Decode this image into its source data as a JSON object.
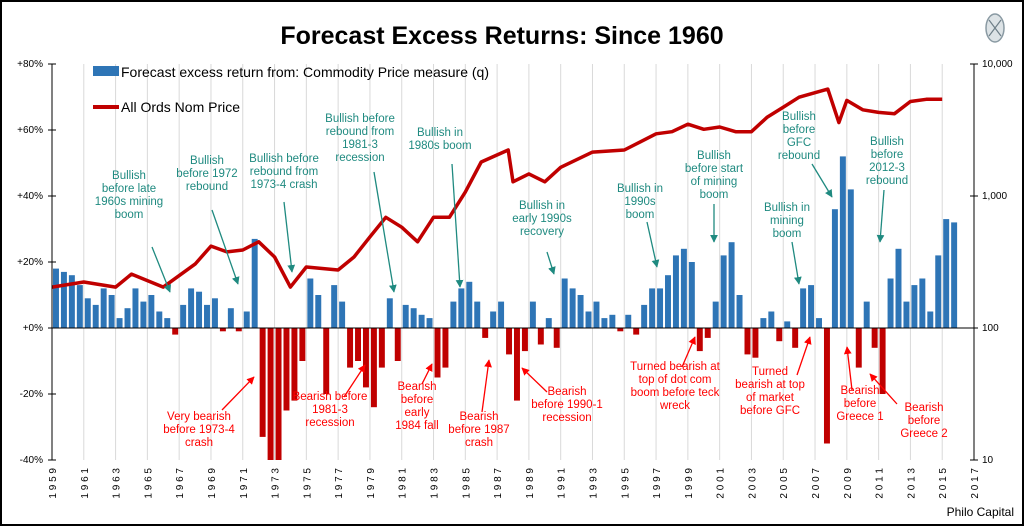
{
  "chart_data": {
    "type": "bar+line",
    "title": "Forecast Excess Returns:   Since 1960",
    "credit": "Philo Capital",
    "left_axis": {
      "range": [
        -40,
        80
      ],
      "ticks": [
        "+80%",
        "+60%",
        "+40%",
        "+20%",
        "+0%",
        "-20%",
        "-40%"
      ],
      "tick_values": [
        80,
        60,
        40,
        20,
        0,
        -20,
        -40
      ]
    },
    "right_axis": {
      "scale": "log",
      "range": [
        10,
        10000
      ],
      "ticks": [
        "10,000",
        "1,000",
        "100",
        "10"
      ],
      "tick_values": [
        10000,
        1000,
        100,
        10
      ]
    },
    "x_axis": {
      "range": [
        1959,
        2017
      ],
      "ticks": [
        "1959",
        "1961",
        "1963",
        "1965",
        "1967",
        "1969",
        "1971",
        "1973",
        "1975",
        "1977",
        "1979",
        "1981",
        "1983",
        "1985",
        "1987",
        "1989",
        "1991",
        "1993",
        "1995",
        "1997",
        "1999",
        "2001",
        "2003",
        "2005",
        "2007",
        "2009",
        "2011",
        "2013",
        "2015",
        "2017"
      ]
    },
    "grid": "vertical",
    "colors": {
      "bars_positive": "#2e75b6",
      "bars_negative": "#c00000",
      "line": "#c00000",
      "bullish_text": "#1f8a80",
      "bearish_text": "#ff0000"
    },
    "series": [
      {
        "name": "Forecast excess return from:  Commodity Price measure (q)",
        "type": "bar",
        "unit": "%",
        "x_start": 1959,
        "x_step": 0.5,
        "values": [
          18,
          17,
          16,
          13,
          9,
          7,
          12,
          10,
          3,
          6,
          12,
          8,
          10,
          5,
          3,
          -2,
          7,
          12,
          11,
          7,
          9,
          -1,
          6,
          -1,
          5,
          27,
          -33,
          -40,
          -40,
          -25,
          -22,
          -10,
          15,
          10,
          -20,
          13,
          8,
          -12,
          -10,
          -18,
          -24,
          -12,
          9,
          -10,
          7,
          6,
          4,
          3,
          -15,
          -12,
          8,
          12,
          14,
          8,
          -3,
          5,
          8,
          -8,
          -22,
          -7,
          8,
          -5,
          3,
          -6,
          15,
          12,
          10,
          5,
          8,
          3,
          4,
          -1,
          4,
          -2,
          7,
          12,
          12,
          16,
          22,
          24,
          20,
          -7,
          -3,
          8,
          22,
          26,
          10,
          -8,
          -9,
          3,
          5,
          -4,
          2,
          -6,
          12,
          13,
          3,
          -35,
          36,
          52,
          42,
          -12,
          8,
          -6,
          -20,
          15,
          24,
          8,
          13,
          15,
          5,
          22,
          33,
          32
        ]
      },
      {
        "name": "All Ords Nom Price",
        "type": "line",
        "axis": "right",
        "x": [
          1959,
          1961,
          1963,
          1964,
          1966,
          1968,
          1969,
          1970,
          1971,
          1972,
          1973,
          1974,
          1975,
          1977,
          1978,
          1979,
          1980,
          1981,
          1982,
          1983,
          1984,
          1985,
          1986,
          1987.7,
          1988,
          1989,
          1990,
          1991,
          1993,
          1995,
          1996,
          1997,
          1998,
          1999,
          2000,
          2001,
          2002,
          2003,
          2004,
          2005,
          2006,
          2007.8,
          2008.5,
          2009,
          2010,
          2011,
          2012,
          2013,
          2014,
          2015
        ],
        "values": [
          204,
          223,
          204,
          256,
          204,
          305,
          417,
          377,
          390,
          450,
          345,
          204,
          290,
          275,
          345,
          490,
          690,
          580,
          450,
          690,
          690,
          1070,
          1810,
          2230,
          1280,
          1470,
          1280,
          1650,
          2150,
          2230,
          2570,
          2960,
          3070,
          3500,
          3200,
          3330,
          3070,
          3070,
          3960,
          4700,
          5600,
          6450,
          3600,
          5300,
          4500,
          4300,
          4200,
          5200,
          5400,
          5400
        ]
      }
    ],
    "annotations": {
      "bullish": [
        [
          "Bullish",
          "before late",
          "1960s mining",
          "boom"
        ],
        [
          "Bullish",
          "before 1972",
          "rebound"
        ],
        [
          "Bullish before",
          "rebound from",
          "1973-4  crash"
        ],
        [
          "Bullish before",
          "rebound from",
          "1981-3",
          "recession"
        ],
        [
          "Bullish in",
          "1980s boom"
        ],
        [
          "Bullish in",
          "early 1990s",
          "recovery"
        ],
        [
          "Bullish in",
          "1990s",
          "boom"
        ],
        [
          "Bullish",
          "before start",
          "of mining",
          "boom"
        ],
        [
          "Bullish in",
          "mining",
          "boom"
        ],
        [
          "Bullish",
          "before",
          "GFC",
          "rebound"
        ],
        [
          "Bullish",
          "before",
          "2012-3",
          "rebound"
        ]
      ],
      "bearish": [
        [
          "Very bearish",
          "before 1973-4",
          "crash"
        ],
        [
          "Bearish before",
          "1981-3",
          "recession"
        ],
        [
          "Bearish",
          "before",
          "early",
          "1984 fall"
        ],
        [
          "Bearish",
          "before 1987",
          "crash"
        ],
        [
          "Bearish",
          "before 1990-1",
          "recession"
        ],
        [
          "Turned bearish at",
          "top of dot com",
          "boom before teck",
          "wreck"
        ],
        [
          "Turned",
          "bearish at top",
          "of market",
          "before GFC"
        ],
        [
          "Bearish",
          "before",
          "Greece 1"
        ],
        [
          "Bearish",
          "before",
          "Greece 2"
        ]
      ]
    }
  }
}
